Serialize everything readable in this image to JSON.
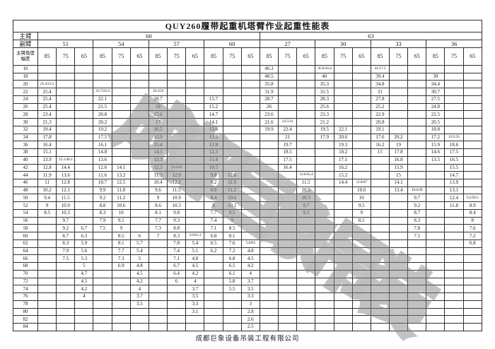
{
  "title": "QUY260履带起重机塔臂作业起重性能表",
  "footer": "成都巨象设备吊装工程有限公司",
  "watermark": "成都巨象吊装",
  "header": {
    "main_boom_label": "主臂",
    "jib_label": "副臂",
    "corner_top": "主臂角度",
    "corner_bottom": "幅度",
    "main_booms": [
      {
        "value": "60",
        "span": 12
      },
      {
        "value": "63",
        "span": 12
      }
    ],
    "jibs": [
      "51",
      "54",
      "57",
      "60",
      "27",
      "30",
      "33",
      "36"
    ],
    "angles": [
      "85",
      "75",
      "65"
    ]
  },
  "table": {
    "rows": [
      {
        "radius": "16",
        "cells": [
          "",
          "",
          "",
          "",
          "",
          "",
          "",
          "",
          "",
          "",
          "",
          "",
          "46.3",
          "",
          "",
          "45.8/16.4",
          "",
          "",
          "41/17.2",
          "",
          "",
          "",
          "",
          ""
        ]
      },
      {
        "radius": "18",
        "cells": [
          "",
          "",
          "",
          "",
          "",
          "",
          "",
          "",
          "",
          "",
          "",
          "",
          "40.5",
          "",
          "",
          "40",
          "",
          "",
          "39.4",
          "",
          "",
          "39",
          "",
          ""
        ]
      },
      {
        "radius": "20",
        "cells": [
          "25.4/21.5",
          "",
          "",
          "",
          "",
          "",
          "",
          "",
          "",
          "",
          "",
          "",
          "35.8",
          "",
          "",
          "35.3",
          "",
          "",
          "34.8",
          "",
          "",
          "34.4",
          "",
          ""
        ]
      },
      {
        "radius": "22",
        "cells": [
          "25.4",
          "",
          "",
          "22.7/22.4",
          "",
          "",
          "19.3/23",
          "",
          "",
          "",
          "",
          "",
          "31.9",
          "",
          "",
          "31.5",
          "",
          "",
          "31",
          "",
          "",
          "30.7",
          "",
          ""
        ]
      },
      {
        "radius": "24",
        "cells": [
          "25.4",
          "",
          "",
          "22.1",
          "",
          "",
          "18.7",
          "",
          "",
          "15.7",
          "",
          "",
          "28.7",
          "",
          "",
          "28.3",
          "",
          "",
          "27.8",
          "",
          "",
          "27.5",
          "",
          ""
        ]
      },
      {
        "radius": "26",
        "cells": [
          "25.4",
          "",
          "",
          "21.5",
          "",
          "",
          "18",
          "",
          "",
          "15.2",
          "",
          "",
          "26",
          "",
          "",
          "25.6",
          "",
          "",
          "25.2",
          "",
          "",
          "24.8",
          "",
          ""
        ]
      },
      {
        "radius": "28",
        "cells": [
          "23.4",
          "",
          "",
          "20.8",
          "",
          "",
          "17.6",
          "",
          "",
          "14.7",
          "",
          "",
          "23.6",
          "",
          "",
          "23.3",
          "",
          "",
          "22.9",
          "",
          "",
          "22.5",
          "",
          ""
        ]
      },
      {
        "radius": "30",
        "cells": [
          "21.3",
          "",
          "",
          "20.2",
          "",
          "",
          "17",
          "",
          "",
          "14.1",
          "",
          "",
          "21.6",
          "23.5/31",
          "",
          "21.2",
          "",
          "",
          "20.8",
          "",
          "",
          "20.5",
          "",
          ""
        ]
      },
      {
        "radius": "32",
        "cells": [
          "19.4",
          "",
          "",
          "19.2",
          "",
          "",
          "16.5",
          "",
          "",
          "13.6",
          "",
          "",
          "19.9",
          "22.4",
          "",
          "19.5",
          "22.1",
          "",
          "19.1",
          "",
          "",
          "18.8",
          "",
          ""
        ]
      },
      {
        "radius": "34",
        "cells": [
          "17.8",
          "",
          "",
          "17.5",
          "",
          "",
          "15.9",
          "",
          "",
          "13.2",
          "",
          "",
          "",
          "21",
          "",
          "17.9",
          "20.6",
          "",
          "17.6",
          "20.2",
          "",
          "17.2",
          "19.5/35",
          ""
        ]
      },
      {
        "radius": "36",
        "cells": [
          "16.4",
          "",
          "",
          "16.1",
          "",
          "",
          "15.4",
          "",
          "",
          "12.8",
          "",
          "",
          "",
          "19.7",
          "",
          "",
          "19.3",
          "",
          "16.2",
          "19",
          "",
          "15.9",
          "18.6",
          ""
        ]
      },
      {
        "radius": "38",
        "cells": [
          "15.1",
          "",
          "",
          "14.8",
          "",
          "",
          "14.5",
          "",
          "",
          "12.3",
          "",
          "",
          "",
          "18.5",
          "",
          "",
          "18.2",
          "",
          "15",
          "17.8",
          "",
          "14.6",
          "17.5",
          ""
        ]
      },
      {
        "radius": "40",
        "cells": [
          "13.9",
          "15.1/40.3",
          "",
          "13.6",
          "",
          "",
          "13.3",
          "",
          "",
          "11.4",
          "",
          "",
          "",
          "17.5",
          "",
          "",
          "17.1",
          "",
          "",
          "16.8",
          "",
          "13.5",
          "16.5",
          ""
        ]
      },
      {
        "radius": "42",
        "cells": [
          "12.8",
          "14.4",
          "",
          "12.6",
          "14.1",
          "",
          "12.3",
          "13.4/43",
          "",
          "10.5",
          "",
          "",
          "",
          "16.4",
          "",
          "",
          "16.2",
          "",
          "",
          "15.9",
          "",
          "",
          "15.5",
          ""
        ]
      },
      {
        "radius": "44",
        "cells": [
          "11.9",
          "13.6",
          "",
          "11.6",
          "13.2",
          "",
          "11.3",
          "12.9",
          "",
          "9.8",
          "12.6",
          "",
          "",
          "",
          "12.0/45.4",
          "",
          "15.2",
          "",
          "",
          "15",
          "",
          "",
          "14.7",
          ""
        ]
      },
      {
        "radius": "46",
        "cells": [
          "11",
          "12.8",
          "",
          "10.7",
          "12.5",
          "",
          "10.4",
          "12.2",
          "",
          "9.2",
          "11.9",
          "",
          "",
          "",
          "11.5",
          "",
          "14.4",
          "11.0/47",
          "",
          "14.1",
          "",
          "",
          "13.9",
          ""
        ]
      },
      {
        "radius": "48",
        "cells": [
          "10.2",
          "12.1",
          "",
          "9.9",
          "11.8",
          "",
          "9.6",
          "11.5",
          "",
          "8.8",
          "11.2",
          "",
          "",
          "",
          "10.9",
          "",
          "",
          "10.6",
          "",
          "13.4",
          "10.0/49",
          "",
          "13.1",
          ""
        ]
      },
      {
        "radius": "50",
        "cells": [
          "9.4",
          "11.5",
          "",
          "9.2",
          "11.2",
          "",
          "9",
          "10.9",
          "",
          "8.4",
          "10.6",
          "",
          "",
          "",
          "10.3",
          "",
          "",
          "10",
          "",
          "",
          "9.7",
          "",
          "12.4",
          "9.2/50.5"
        ]
      },
      {
        "radius": "52",
        "cells": [
          "9",
          "10.9",
          "",
          "8.8",
          "10.6",
          "",
          "8.6",
          "10.3",
          "",
          "8",
          "10.1",
          "",
          "",
          "",
          "9.7",
          "",
          "",
          "9.5",
          "",
          "",
          "9.2",
          "",
          "11.8",
          "8.9"
        ]
      },
      {
        "radius": "54",
        "cells": [
          "8.5",
          "10.3",
          "",
          "8.3",
          "10",
          "",
          "8.1",
          "9.8",
          "",
          "7.7",
          "9.5",
          "",
          "",
          "",
          "9.3",
          "",
          "",
          "9",
          "",
          "",
          "8.7",
          "",
          "",
          "8.4"
        ]
      },
      {
        "radius": "56",
        "cells": [
          "",
          "9.7",
          "",
          "7.9",
          "9.5",
          "",
          "7.7",
          "9.3",
          "",
          "7.4",
          "9",
          "",
          "",
          "",
          "",
          "",
          "",
          "8.5",
          "",
          "",
          "8.3",
          "",
          "",
          "8"
        ]
      },
      {
        "radius": "58",
        "cells": [
          "",
          "9.2",
          "6.7",
          "7.5",
          "9",
          "",
          "7.3",
          "8.8",
          "",
          "7.1",
          "8.5",
          "",
          "",
          "",
          "",
          "",
          "",
          "",
          "",
          "",
          "7.8",
          "",
          "",
          "7.6"
        ]
      },
      {
        "radius": "60",
        "cells": [
          "",
          "8.7",
          "6.3",
          "",
          "8.5",
          "6",
          "7",
          "8.3",
          "5.6/61.3",
          "6.8",
          "8.1",
          "",
          "",
          "",
          "",
          "",
          "",
          "",
          "",
          "",
          "7.5",
          "",
          "",
          "7.2"
        ]
      },
      {
        "radius": "62",
        "cells": [
          "",
          "8.3",
          "5.9",
          "",
          "8.1",
          "5.7",
          "",
          "7.8",
          "5.4",
          "6.5",
          "7.6",
          "5.0/63",
          "",
          "",
          "",
          "",
          "",
          "",
          "",
          "",
          "",
          "",
          "",
          "6.8"
        ]
      },
      {
        "radius": "64",
        "cells": [
          "",
          "7.9",
          "5.6",
          "",
          "7.7",
          "5.4",
          "",
          "7.4",
          "5.1",
          "6.2",
          "7.2",
          "4.8",
          "",
          "",
          "",
          "",
          "",
          "",
          "",
          "",
          "",
          "",
          "",
          ""
        ]
      },
      {
        "radius": "66",
        "cells": [
          "",
          "7.5",
          "5.3",
          "",
          "7.3",
          "5",
          "",
          "7.1",
          "4.8",
          "",
          "6.8",
          "4.5",
          "",
          "",
          "",
          "",
          "",
          "",
          "",
          "",
          "",
          "",
          "",
          ""
        ]
      },
      {
        "radius": "68",
        "cells": [
          "",
          "",
          "5",
          "",
          "6.9",
          "4.8",
          "",
          "6.7",
          "4.5",
          "",
          "6.5",
          "4.2",
          "",
          "",
          "",
          "",
          "",
          "",
          "",
          "",
          "",
          "",
          "",
          ""
        ]
      },
      {
        "radius": "70",
        "cells": [
          "",
          "",
          "4.7",
          "",
          "",
          "4.5",
          "",
          "6.4",
          "4.2",
          "",
          "6.1",
          "4",
          "",
          "",
          "",
          "",
          "",
          "",
          "",
          "",
          "",
          "",
          "",
          ""
        ]
      },
      {
        "radius": "72",
        "cells": [
          "",
          "",
          "4.5",
          "",
          "",
          "4.2",
          "",
          "6",
          "4",
          "",
          "5.8",
          "3.7",
          "",
          "",
          "",
          "",
          "",
          "",
          "",
          "",
          "",
          "",
          "",
          ""
        ]
      },
      {
        "radius": "74",
        "cells": [
          "",
          "",
          "4.2",
          "",
          "",
          "4",
          "",
          "",
          "3.7",
          "",
          "5.5",
          "3.5",
          "",
          "",
          "",
          "",
          "",
          "",
          "",
          "",
          "",
          "",
          "",
          ""
        ]
      },
      {
        "radius": "76",
        "cells": [
          "",
          "",
          "4",
          "",
          "",
          "3.7",
          "",
          "",
          "3.5",
          "",
          "",
          "3.3",
          "",
          "",
          "",
          "",
          "",
          "",
          "",
          "",
          "",
          "",
          "",
          ""
        ]
      },
      {
        "radius": "78",
        "cells": [
          "",
          "",
          "",
          "",
          "",
          "3.5",
          "",
          "",
          "3.3",
          "",
          "",
          "3",
          "",
          "",
          "",
          "",
          "",
          "",
          "",
          "",
          "",
          "",
          "",
          ""
        ]
      },
      {
        "radius": "80",
        "cells": [
          "",
          "",
          "",
          "",
          "",
          "",
          "",
          "",
          "3.1",
          "",
          "",
          "2.8",
          "",
          "",
          "",
          "",
          "",
          "",
          "",
          "",
          "",
          "",
          "",
          ""
        ]
      },
      {
        "radius": "82",
        "cells": [
          "",
          "",
          "",
          "",
          "",
          "",
          "",
          "",
          "",
          "",
          "",
          "2.6",
          "",
          "",
          "",
          "",
          "",
          "",
          "",
          "",
          "",
          "",
          "",
          ""
        ]
      },
      {
        "radius": "84",
        "cells": [
          "",
          "",
          "",
          "",
          "",
          "",
          "",
          "",
          "",
          "",
          "",
          "2.5",
          "",
          "",
          "",
          "",
          "",
          "",
          "",
          "",
          "",
          "",
          "",
          ""
        ]
      }
    ]
  }
}
